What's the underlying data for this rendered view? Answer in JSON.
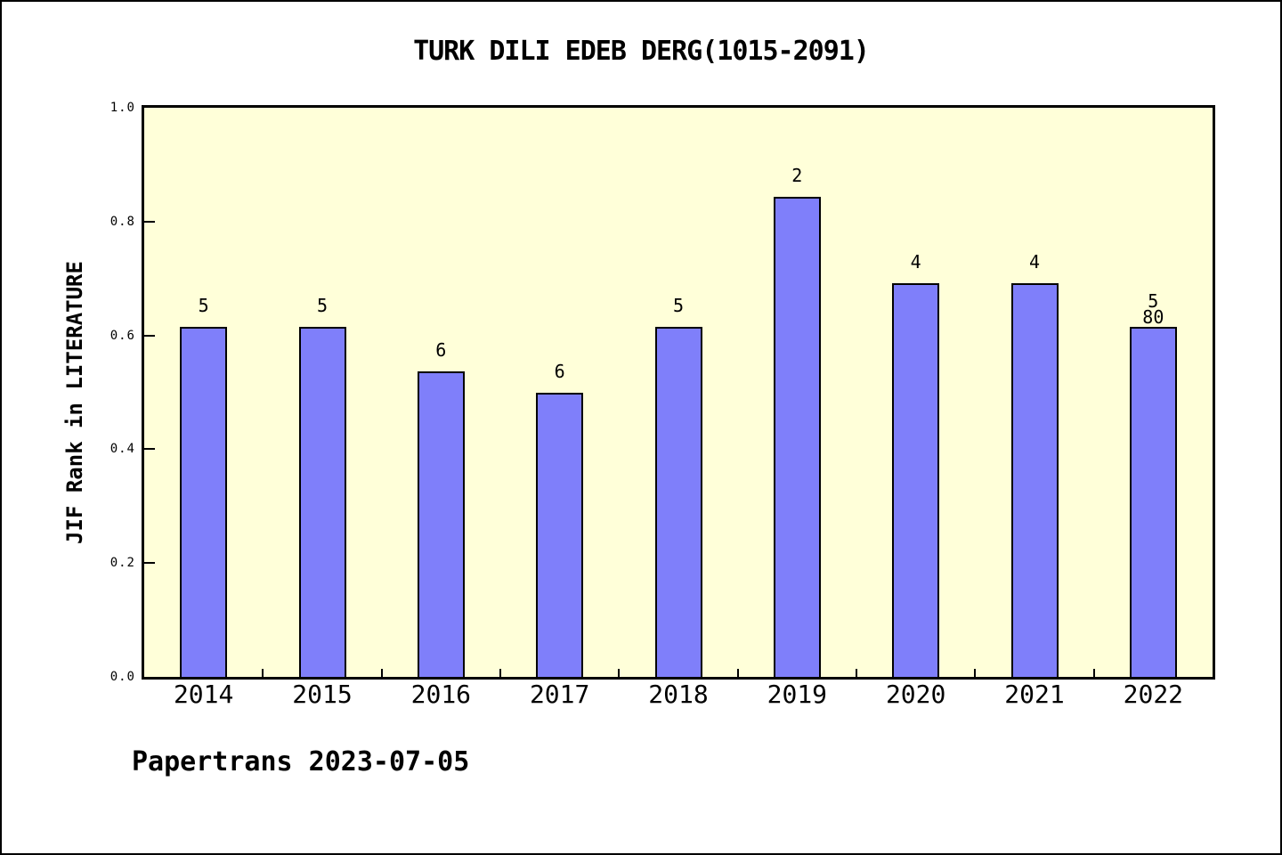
{
  "chart_data": {
    "type": "bar",
    "title": "TURK DILI EDEB DERG(1015-2091)",
    "ylabel": "JIF Rank in LITERATURE",
    "xlabel": "",
    "categories": [
      "2014",
      "2015",
      "2016",
      "2017",
      "2018",
      "2019",
      "2020",
      "2021",
      "2022"
    ],
    "values": [
      0.615,
      0.615,
      0.537,
      0.5,
      0.615,
      0.844,
      0.691,
      0.691,
      0.615
    ],
    "bar_labels": [
      "5",
      "5",
      "6",
      "6",
      "5",
      "2",
      "4",
      "4",
      "5"
    ],
    "extra_annotation": {
      "category": "2022",
      "text": "80"
    },
    "ylim": [
      0,
      1
    ],
    "yticks": [
      "0.0",
      "0.2",
      "0.4",
      "0.6",
      "0.8",
      "1.0"
    ],
    "grid": false,
    "legend": "none",
    "layout_hints": {
      "ytick_marks_inside": true,
      "xtick_marks_at_category_boundaries": true
    },
    "colors": {
      "bar_fill": "#7f7ffa",
      "bar_border": "#000000",
      "plot_background": "#ffffd9",
      "page_background": "#ffffff",
      "text": "#000000"
    }
  },
  "footer": {
    "text": "Papertrans 2023-07-05"
  }
}
